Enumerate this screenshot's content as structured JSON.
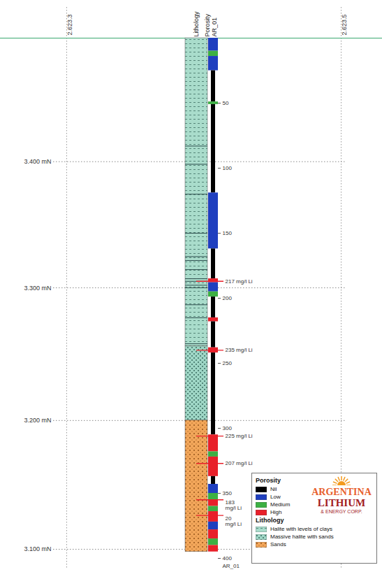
{
  "chart_data": {
    "type": "well_log",
    "title": "AR_01",
    "column_headers": [
      "Lithology",
      "Porosity"
    ],
    "ylim": [
      0,
      400
    ],
    "yticks": [
      50,
      100,
      150,
      200,
      250,
      300,
      350,
      400
    ],
    "easting_labels": [
      "2.623.3",
      "2.623.5"
    ],
    "northing_lines": [
      {
        "label": "3.400 mN",
        "depth": 95
      },
      {
        "label": "3.300 mN",
        "depth": 192
      },
      {
        "label": "3.200 mN",
        "depth": 294
      },
      {
        "label": "3.100 mN",
        "depth": 393
      }
    ],
    "lithology_units": [
      {
        "name": "Halite with levels of clays",
        "color": "#a9dccb"
      },
      {
        "name": "Massive halite with sands",
        "color": "#9fd7c6"
      },
      {
        "name": "Sands",
        "color": "#f2a65a"
      }
    ],
    "lithology": [
      {
        "from": 0,
        "to": 237,
        "unit": "Halite with levels of clays"
      },
      {
        "from": 237,
        "to": 294,
        "unit": "Massive halite with sands"
      },
      {
        "from": 294,
        "to": 395,
        "unit": "Sands"
      }
    ],
    "clay_levels": [
      83,
      97,
      120,
      150,
      168,
      171,
      178,
      185,
      187,
      190,
      192,
      205,
      215,
      235
    ],
    "porosity_classes": [
      {
        "name": "Nil",
        "color": "#000000"
      },
      {
        "name": "Low",
        "color": "#1f3fbf"
      },
      {
        "name": "Medium",
        "color": "#3cb043"
      },
      {
        "name": "High",
        "color": "#e8202a"
      }
    ],
    "porosity": [
      {
        "from": 0,
        "to": 10,
        "class": "Low"
      },
      {
        "from": 10,
        "to": 14,
        "class": "Medium"
      },
      {
        "from": 14,
        "to": 25,
        "class": "Low"
      },
      {
        "from": 25,
        "to": 49,
        "class": "Nil"
      },
      {
        "from": 49,
        "to": 51,
        "class": "Medium"
      },
      {
        "from": 51,
        "to": 119,
        "class": "Nil"
      },
      {
        "from": 119,
        "to": 162,
        "class": "Low"
      },
      {
        "from": 162,
        "to": 185,
        "class": "Nil"
      },
      {
        "from": 185,
        "to": 188,
        "class": "High"
      },
      {
        "from": 188,
        "to": 195,
        "class": "Low"
      },
      {
        "from": 195,
        "to": 199,
        "class": "Medium"
      },
      {
        "from": 199,
        "to": 215,
        "class": "Nil"
      },
      {
        "from": 215,
        "to": 218,
        "class": "High"
      },
      {
        "from": 218,
        "to": 238,
        "class": "Nil"
      },
      {
        "from": 238,
        "to": 242,
        "class": "High"
      },
      {
        "from": 242,
        "to": 305,
        "class": "Nil"
      },
      {
        "from": 305,
        "to": 318,
        "class": "High"
      },
      {
        "from": 318,
        "to": 322,
        "class": "Medium"
      },
      {
        "from": 322,
        "to": 337,
        "class": "High"
      },
      {
        "from": 337,
        "to": 343,
        "class": "Nil"
      },
      {
        "from": 343,
        "to": 350,
        "class": "Low"
      },
      {
        "from": 350,
        "to": 355,
        "class": "Medium"
      },
      {
        "from": 355,
        "to": 360,
        "class": "High"
      },
      {
        "from": 360,
        "to": 364,
        "class": "Medium"
      },
      {
        "from": 364,
        "to": 372,
        "class": "High"
      },
      {
        "from": 372,
        "to": 378,
        "class": "Low"
      },
      {
        "from": 378,
        "to": 385,
        "class": "High"
      },
      {
        "from": 385,
        "to": 390,
        "class": "Medium"
      },
      {
        "from": 390,
        "to": 395,
        "class": "High"
      }
    ],
    "lithium_samples": [
      {
        "depth": 187,
        "label": "217 mg/l Li"
      },
      {
        "depth": 240,
        "label": "235 mg/l Li"
      },
      {
        "depth": 306,
        "label": "225 mg/l Li"
      },
      {
        "depth": 327,
        "label": "207 mg/l Li"
      },
      {
        "depth": 355,
        "label": "183 mg/l Li"
      },
      {
        "depth": 367,
        "label": "20 mg/l Li"
      }
    ],
    "legend": "bottom-right",
    "legend_titles": {
      "porosity": "Porosity",
      "lithology": "Lithology"
    },
    "logo": [
      "ARGENTINA",
      "LITHIUM",
      "& ENERGY CORP."
    ]
  }
}
